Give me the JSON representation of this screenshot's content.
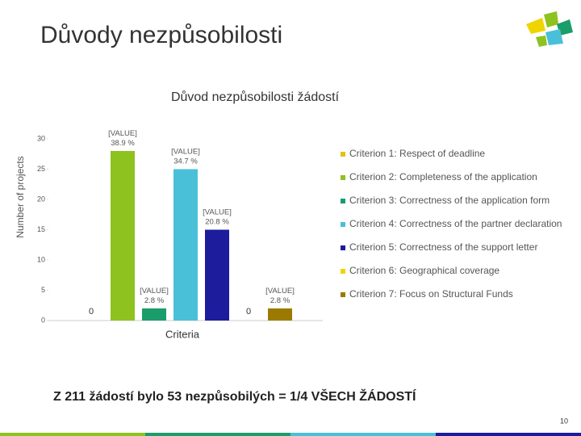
{
  "slide_title": "Důvody nezpůsobilosti",
  "chart_data": {
    "type": "bar",
    "title": "Důvod nezpůsobilosti žádostí",
    "y_label": "Number of projects",
    "x_label": "Criteria",
    "categories": [
      "Criterion 1: Respect of deadline",
      "Criterion 2: Completeness of the application",
      "Criterion 3: Correctness of the application form",
      "Criterion 4: Correctness of the partner declaration",
      "Criterion 5: Correctness of the support letter",
      "Criterion 6: Geographical coverage",
      "Criterion 7: Focus on Structural Funds"
    ],
    "values": [
      0,
      28,
      2,
      25,
      15,
      0,
      2
    ],
    "value_labels": [
      "0",
      "[VALUE]\n38.9 %",
      "[VALUE]\n2.8 %",
      "[VALUE]\n34.7 %",
      "[VALUE]\n20.8 %",
      "0",
      "[VALUE]\n2.8 %"
    ],
    "colors": [
      "#e3c21a",
      "#8dc21f",
      "#1a9c6b",
      "#4ac0d8",
      "#1c1c9c",
      "#f0d400",
      "#9c7a00"
    ],
    "ylim": [
      0,
      30
    ],
    "yticks": [
      0,
      5,
      10,
      15,
      20,
      25,
      30
    ],
    "legend": "right"
  },
  "footnote": "Z 211 žádostí bylo 53 nezpůsobilých = 1/4 VŠECH ŽÁDOSTÍ",
  "page_number": "10"
}
